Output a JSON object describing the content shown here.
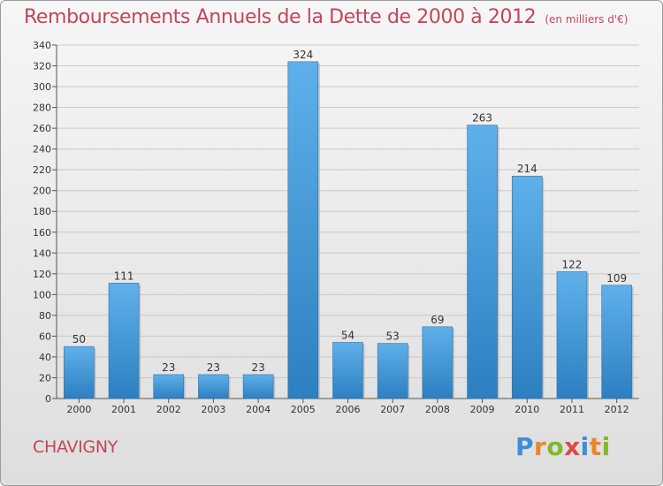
{
  "title": "Remboursements Annuels de la Dette de 2000 à 2012",
  "units": "(en milliers d'€)",
  "commune": "CHAVIGNY",
  "logo": {
    "text": "Proxiti",
    "letters": [
      {
        "ch": "P",
        "color": "#3e8ed8"
      },
      {
        "ch": "r",
        "color": "#e8862a"
      },
      {
        "ch": "o",
        "color": "#82b82a"
      },
      {
        "ch": "x",
        "color": "#d94a4a"
      },
      {
        "ch": "i",
        "color": "#3e8ed8"
      },
      {
        "ch": "t",
        "color": "#e8862a"
      },
      {
        "ch": "i",
        "color": "#82b82a"
      }
    ]
  },
  "colors": {
    "title": "#c2465b",
    "bar_light": "#5fb0ea",
    "bar_dark": "#2d7fc0",
    "grid": "#c8c8c8"
  },
  "chart_data": {
    "type": "bar",
    "categories": [
      "2000",
      "2001",
      "2002",
      "2003",
      "2004",
      "2005",
      "2006",
      "2007",
      "2008",
      "2009",
      "2010",
      "2011",
      "2012"
    ],
    "values": [
      50,
      111,
      23,
      23,
      23,
      324,
      54,
      53,
      69,
      263,
      214,
      122,
      109
    ],
    "title": "Remboursements Annuels de la Dette de 2000 à 2012",
    "subtitle": "(en milliers d'€)",
    "xlabel": "",
    "ylabel": "",
    "ylim": [
      0,
      340
    ],
    "yticks": [
      0,
      20,
      40,
      60,
      80,
      100,
      120,
      140,
      160,
      180,
      200,
      220,
      240,
      260,
      280,
      300,
      320,
      340
    ],
    "grid": true,
    "data_labels": true
  }
}
